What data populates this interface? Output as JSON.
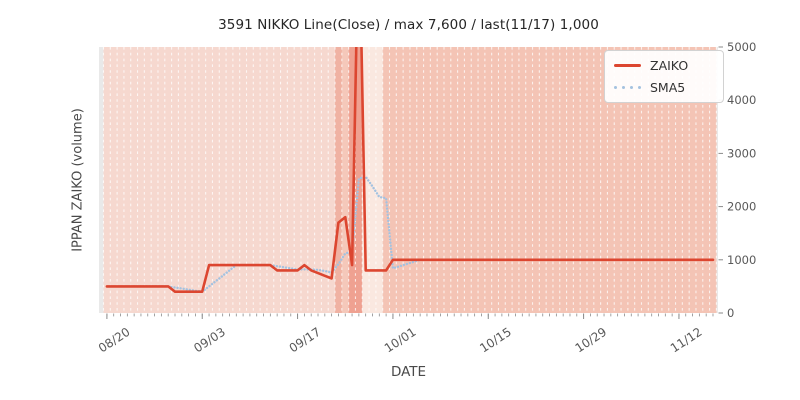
{
  "title": "3591 NIKKO Line(Close) / max 7,600 / last(11/17) 1,000",
  "ylabel": "IPPAN ZAIKO (volume)",
  "xlabel": "DATE",
  "legend": {
    "zaiko_label": "ZAIKO",
    "sma5_label": "SMA5",
    "position": "upper right"
  },
  "colors": {
    "zaiko_line": "#dc4630",
    "sma5_line": "#a4c2e0",
    "plot_bg": "#e9e9e9",
    "grid_dash": "rgba(255,255,255,0.75)",
    "tick_mark": "#8a8a8a",
    "tick_text": "#595959",
    "band_default": "#f6d8cf",
    "band_after": "#f4c4b5",
    "band_dark1": "#f0b2a3",
    "band_mid": "#f5c8ba",
    "band_darkest": "#efa191",
    "band_lightest": "#fae8e0"
  },
  "chart_data": {
    "type": "line",
    "title": "3591 NIKKO Line(Close) / max 7,600 / last(11/17) 1,000",
    "xlabel": "DATE",
    "ylabel": "IPPAN ZAIKO (volume)",
    "ylim": [
      0,
      5000
    ],
    "y_ticks": [
      0,
      1000,
      2000,
      3000,
      4000,
      5000
    ],
    "y_axis_side": "right",
    "x_tick_labels": [
      "08/20",
      "09/03",
      "09/17",
      "10/01",
      "10/15",
      "10/29",
      "11/12"
    ],
    "grid": "vertical daily dashed white lines",
    "legend_position": "upper right",
    "max_value": 7600,
    "last_date": "11/17",
    "last_value": 1000,
    "dates": [
      "08/20",
      "08/21",
      "08/22",
      "08/23",
      "08/24",
      "08/25",
      "08/26",
      "08/27",
      "08/28",
      "08/29",
      "08/30",
      "08/31",
      "09/01",
      "09/02",
      "09/03",
      "09/04",
      "09/05",
      "09/06",
      "09/07",
      "09/08",
      "09/09",
      "09/10",
      "09/11",
      "09/12",
      "09/13",
      "09/14",
      "09/15",
      "09/16",
      "09/17",
      "09/18",
      "09/19",
      "09/20",
      "09/21",
      "09/22",
      "09/23",
      "09/24",
      "09/25",
      "09/26",
      "09/27",
      "09/28",
      "09/29",
      "09/30",
      "10/01",
      "10/02",
      "10/03",
      "10/04",
      "10/05",
      "10/06",
      "10/07",
      "10/08",
      "10/09",
      "10/10",
      "10/11",
      "10/12",
      "10/13",
      "10/14",
      "10/15",
      "10/16",
      "10/17",
      "10/18",
      "10/19",
      "10/20",
      "10/21",
      "10/22",
      "10/23",
      "10/24",
      "10/25",
      "10/26",
      "10/27",
      "10/28",
      "10/29",
      "10/30",
      "10/31",
      "11/01",
      "11/02",
      "11/03",
      "11/04",
      "11/05",
      "11/06",
      "11/07",
      "11/08",
      "11/09",
      "11/10",
      "11/11",
      "11/12",
      "11/13",
      "11/14",
      "11/15",
      "11/16",
      "11/17"
    ],
    "series": [
      {
        "name": "ZAIKO",
        "style": "solid",
        "color": "#dc4630",
        "values": [
          500,
          500,
          500,
          500,
          500,
          500,
          500,
          500,
          500,
          500,
          400,
          400,
          400,
          400,
          400,
          900,
          900,
          900,
          900,
          900,
          900,
          900,
          900,
          900,
          900,
          800,
          800,
          800,
          800,
          900,
          800,
          750,
          700,
          650,
          1700,
          1800,
          900,
          7600,
          800,
          800,
          800,
          800,
          1000,
          1000,
          1000,
          1000,
          1000,
          1000,
          1000,
          1000,
          1000,
          1000,
          1000,
          1000,
          1000,
          1000,
          1000,
          1000,
          1000,
          1000,
          1000,
          1000,
          1000,
          1000,
          1000,
          1000,
          1000,
          1000,
          1000,
          1000,
          1000,
          1000,
          1000,
          1000,
          1000,
          1000,
          1000,
          1000,
          1000,
          1000,
          1000,
          1000,
          1000,
          1000,
          1000,
          1000,
          1000,
          1000,
          1000,
          1000
        ]
      },
      {
        "name": "SMA5",
        "style": "dotted",
        "color": "#a4c2e0",
        "derived_from": "ZAIKO",
        "window": 5
      }
    ],
    "background_bands": {
      "default": "#f6d8cf",
      "after": {
        "from": "09/30",
        "color": "#f4c4b5"
      },
      "overrides": {
        "09/23": "#f0b2a3",
        "09/24": "#f5c8ba",
        "09/25": "#efa191",
        "09/26": "#efa191",
        "09/27": "#fae8e0",
        "09/28": "#fae8e0",
        "09/29": "#fae8e0"
      }
    }
  }
}
